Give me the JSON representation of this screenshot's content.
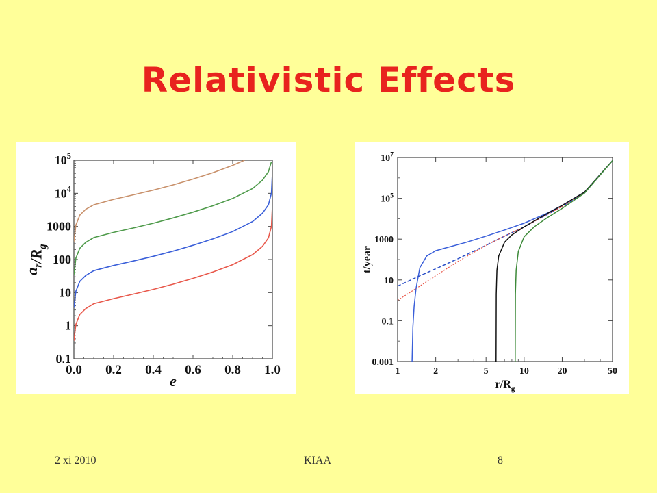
{
  "slide": {
    "title": "Relativistic Effects",
    "footer_date": "2 xi 2010",
    "footer_org": "KIAA",
    "footer_page": "8"
  },
  "chart_data": [
    {
      "type": "line",
      "xlabel": "e",
      "ylabel": "a_r/R_g",
      "xlim": [
        0,
        1
      ],
      "ylim": [
        0.1,
        100000
      ],
      "yscale": "log",
      "x_ticks": [
        "0.0",
        "0.2",
        "0.4",
        "0.6",
        "0.8",
        "1.0"
      ],
      "y_ticks": [
        "0.1",
        "1",
        "10",
        "100",
        "1000",
        "10^4",
        "10^5"
      ],
      "series": [
        {
          "color": "#C8906A",
          "x": [
            0.0,
            0.01,
            0.03,
            0.06,
            0.1,
            0.2,
            0.3,
            0.4,
            0.5,
            0.6,
            0.7,
            0.8,
            0.86
          ],
          "y": [
            350,
            1100,
            2200,
            3300,
            4500,
            6600,
            9000,
            12500,
            18000,
            27000,
            42000,
            70000,
            100000
          ]
        },
        {
          "color": "#4E9A4A",
          "x": [
            0.0,
            0.01,
            0.03,
            0.06,
            0.1,
            0.2,
            0.3,
            0.4,
            0.5,
            0.6,
            0.7,
            0.8,
            0.9,
            0.95,
            0.98,
            0.995
          ],
          "y": [
            35,
            110,
            220,
            330,
            460,
            660,
            900,
            1250,
            1800,
            2700,
            4200,
            7000,
            14000,
            25000,
            45000,
            90000
          ]
        },
        {
          "color": "#3A5FD9",
          "x": [
            0.0,
            0.01,
            0.03,
            0.06,
            0.1,
            0.2,
            0.3,
            0.4,
            0.5,
            0.6,
            0.7,
            0.8,
            0.9,
            0.95,
            0.98,
            0.995,
            1.0
          ],
          "y": [
            3.5,
            11,
            22,
            33,
            46,
            66,
            90,
            125,
            180,
            270,
            420,
            700,
            1400,
            2500,
            4500,
            10000,
            40000
          ]
        },
        {
          "color": "#E8574A",
          "x": [
            0.0,
            0.01,
            0.03,
            0.06,
            0.1,
            0.2,
            0.3,
            0.4,
            0.5,
            0.6,
            0.7,
            0.8,
            0.9,
            0.95,
            0.98,
            0.995,
            1.0
          ],
          "y": [
            0.35,
            1.1,
            2.2,
            3.3,
            4.6,
            6.6,
            9.0,
            12.5,
            18,
            27,
            42,
            70,
            140,
            250,
            450,
            1000,
            4000
          ]
        }
      ]
    },
    {
      "type": "line",
      "xlabel": "r/R_g",
      "ylabel": "t/year",
      "xlim": [
        1,
        50
      ],
      "ylim": [
        0.001,
        10000000
      ],
      "xscale": "log",
      "yscale": "log",
      "x_ticks": [
        "1",
        "2",
        "5",
        "10",
        "20",
        "50"
      ],
      "y_ticks": [
        "0.001",
        "0.1",
        "10",
        "1000",
        "10^5",
        "10^7"
      ],
      "series": [
        {
          "color": "#3A5FD9",
          "style": "solid",
          "x": [
            1.3,
            1.32,
            1.35,
            1.4,
            1.5,
            1.7,
            2.0,
            2.5,
            3.5,
            5,
            7,
            10,
            15,
            20,
            30,
            50
          ],
          "y": [
            0.001,
            0.05,
            0.5,
            4,
            40,
            150,
            270,
            400,
            700,
            1400,
            2800,
            6000,
            18000,
            45000,
            200000,
            7000000
          ]
        },
        {
          "color": "#2B4FC8",
          "style": "dashed",
          "x": [
            1.0,
            1.5,
            2.0,
            3.0,
            5,
            7,
            10,
            20,
            30,
            50
          ],
          "y": [
            5,
            16,
            35,
            110,
            500,
            1400,
            4000,
            40000,
            180000,
            7000000
          ]
        },
        {
          "color": "#E8574A",
          "style": "dotted",
          "x": [
            1.0,
            1.5,
            2.0,
            3.0,
            5,
            7,
            10,
            20,
            30,
            50
          ],
          "y": [
            1,
            5,
            16,
            80,
            500,
            1400,
            4000,
            40000,
            180000,
            7000000
          ]
        },
        {
          "color": "#111111",
          "style": "solid",
          "x": [
            6.0,
            6.02,
            6.1,
            6.3,
            7,
            8,
            10,
            15,
            20,
            30,
            50
          ],
          "y": [
            0.001,
            2,
            30,
            150,
            700,
            1600,
            4000,
            17000,
            45000,
            200000,
            7000000
          ]
        },
        {
          "color": "#3E8A3A",
          "style": "solid",
          "x": [
            8.5,
            8.53,
            8.65,
            9.0,
            10,
            12,
            15,
            20,
            30,
            50
          ],
          "y": [
            0.001,
            2,
            30,
            250,
            1300,
            4000,
            10500,
            32000,
            180000,
            7000000
          ]
        }
      ]
    }
  ]
}
